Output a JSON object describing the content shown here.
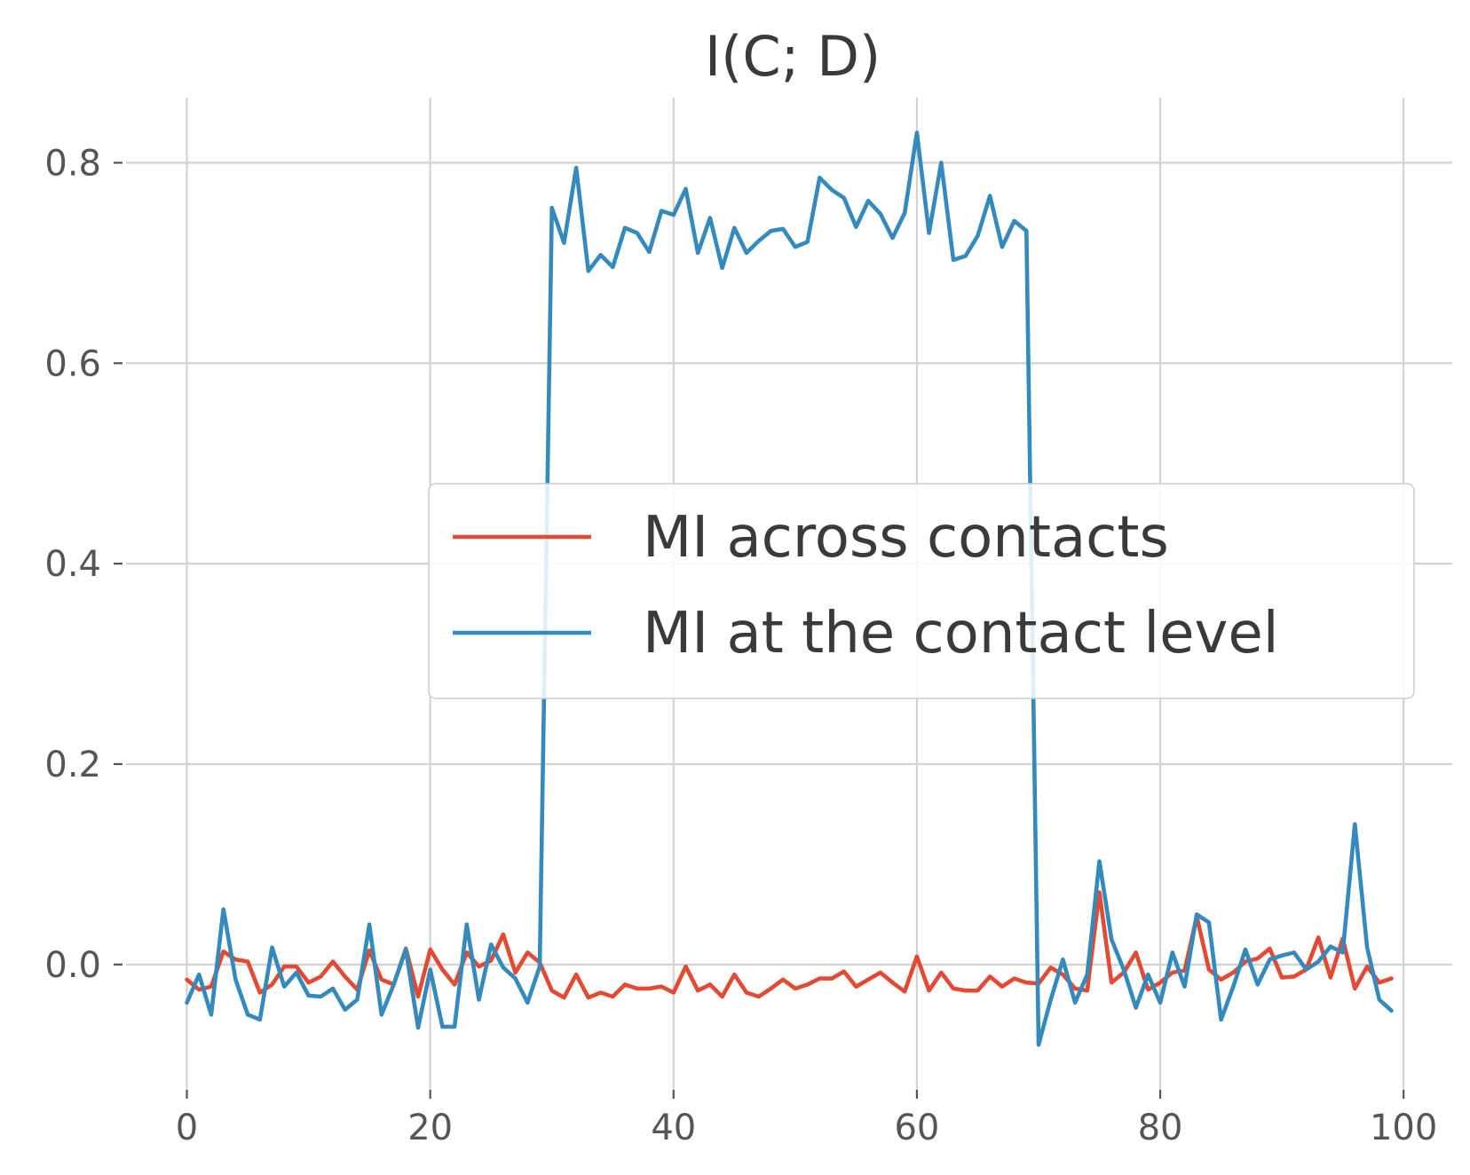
{
  "chart_data": {
    "type": "line",
    "title": "I(C; D)",
    "xlabel": "",
    "ylabel": "",
    "xlim": [
      -5,
      104
    ],
    "ylim": [
      -0.125,
      0.865
    ],
    "xticks": [
      0,
      20,
      40,
      60,
      80,
      100
    ],
    "xtick_labels": [
      "0",
      "20",
      "40",
      "60",
      "80",
      "100"
    ],
    "yticks": [
      0.0,
      0.2,
      0.4,
      0.6,
      0.8
    ],
    "ytick_labels": [
      "0.0",
      "0.2",
      "0.4",
      "0.6",
      "0.8"
    ],
    "grid": true,
    "legend_position": "center-right",
    "x": [
      0,
      1,
      2,
      3,
      4,
      5,
      6,
      7,
      8,
      9,
      10,
      11,
      12,
      13,
      14,
      15,
      16,
      17,
      18,
      19,
      20,
      21,
      22,
      23,
      24,
      25,
      26,
      27,
      28,
      29,
      30,
      31,
      32,
      33,
      34,
      35,
      36,
      37,
      38,
      39,
      40,
      41,
      42,
      43,
      44,
      45,
      46,
      47,
      48,
      49,
      50,
      51,
      52,
      53,
      54,
      55,
      56,
      57,
      58,
      59,
      60,
      61,
      62,
      63,
      64,
      65,
      66,
      67,
      68,
      69,
      70,
      71,
      72,
      73,
      74,
      75,
      76,
      77,
      78,
      79,
      80,
      81,
      82,
      83,
      84,
      85,
      86,
      87,
      88,
      89,
      90,
      91,
      92,
      93,
      94,
      95,
      96,
      97,
      98,
      99
    ],
    "series": [
      {
        "name": "MI across contacts",
        "color": "#e24a33",
        "values": [
          -0.015,
          -0.025,
          -0.022,
          0.013,
          0.005,
          0.003,
          -0.028,
          -0.02,
          -0.002,
          -0.002,
          -0.018,
          -0.012,
          0.003,
          -0.012,
          -0.025,
          0.014,
          -0.015,
          -0.02,
          0.016,
          -0.032,
          0.015,
          -0.005,
          -0.02,
          0.012,
          -0.002,
          0.004,
          0.03,
          -0.008,
          0.012,
          0.002,
          -0.026,
          -0.033,
          -0.01,
          -0.033,
          -0.028,
          -0.032,
          -0.02,
          -0.024,
          -0.024,
          -0.022,
          -0.028,
          -0.002,
          -0.026,
          -0.02,
          -0.032,
          -0.01,
          -0.028,
          -0.032,
          -0.024,
          -0.015,
          -0.024,
          -0.02,
          -0.014,
          -0.014,
          -0.007,
          -0.022,
          -0.015,
          -0.008,
          -0.018,
          -0.027,
          0.008,
          -0.026,
          -0.008,
          -0.024,
          -0.026,
          -0.026,
          -0.012,
          -0.022,
          -0.014,
          -0.018,
          -0.019,
          -0.003,
          -0.01,
          -0.024,
          -0.026,
          0.072,
          -0.018,
          -0.008,
          0.012,
          -0.025,
          -0.018,
          -0.008,
          -0.006,
          0.048,
          -0.005,
          -0.015,
          -0.008,
          0.003,
          0.006,
          0.016,
          -0.013,
          -0.012,
          -0.005,
          0.027,
          -0.013,
          0.026,
          -0.024,
          -0.002,
          -0.018,
          -0.014
        ]
      },
      {
        "name": "MI at the contact level",
        "color": "#348abd",
        "values": [
          -0.038,
          -0.01,
          -0.05,
          0.055,
          -0.015,
          -0.05,
          -0.055,
          0.017,
          -0.022,
          -0.008,
          -0.031,
          -0.032,
          -0.024,
          -0.045,
          -0.035,
          0.04,
          -0.05,
          -0.02,
          0.015,
          -0.063,
          -0.005,
          -0.062,
          -0.062,
          0.04,
          -0.035,
          0.02,
          -0.003,
          -0.014,
          -0.038,
          -0.002,
          0.755,
          0.72,
          0.795,
          0.692,
          0.708,
          0.696,
          0.735,
          0.73,
          0.711,
          0.752,
          0.748,
          0.774,
          0.71,
          0.745,
          0.695,
          0.735,
          0.71,
          0.722,
          0.732,
          0.734,
          0.716,
          0.721,
          0.785,
          0.773,
          0.765,
          0.736,
          0.762,
          0.749,
          0.725,
          0.75,
          0.83,
          0.73,
          0.8,
          0.703,
          0.707,
          0.727,
          0.767,
          0.716,
          0.742,
          0.732,
          -0.08,
          -0.035,
          0.005,
          -0.038,
          -0.01,
          0.103,
          0.025,
          -0.005,
          -0.043,
          -0.01,
          -0.038,
          0.012,
          -0.022,
          0.05,
          0.042,
          -0.055,
          -0.022,
          0.015,
          -0.02,
          0.005,
          0.009,
          0.012,
          -0.005,
          0.003,
          0.018,
          0.012,
          0.14,
          0.017,
          -0.035,
          -0.046
        ]
      }
    ]
  }
}
